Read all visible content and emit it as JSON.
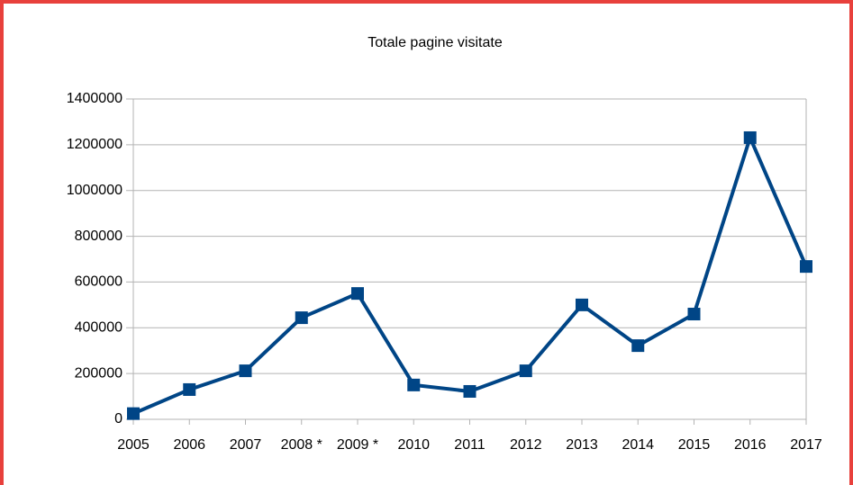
{
  "chart_data": {
    "type": "line",
    "title": "Totale pagine visitate",
    "categories": [
      "2005",
      "2006",
      "2007",
      "2008 *",
      "2009 *",
      "2010",
      "2011",
      "2012",
      "2013",
      "2014",
      "2015",
      "2016",
      "2017"
    ],
    "series": [
      {
        "name": "Totale pagine visitate",
        "color": "#004586",
        "values": [
          25000,
          130000,
          212000,
          444000,
          550000,
          150000,
          122000,
          212000,
          500000,
          322000,
          460000,
          1231000,
          668000
        ]
      }
    ],
    "ylim": [
      0,
      1400000
    ],
    "yticks": [
      0,
      200000,
      400000,
      600000,
      800000,
      1000000,
      1200000,
      1400000
    ],
    "grid": true
  }
}
